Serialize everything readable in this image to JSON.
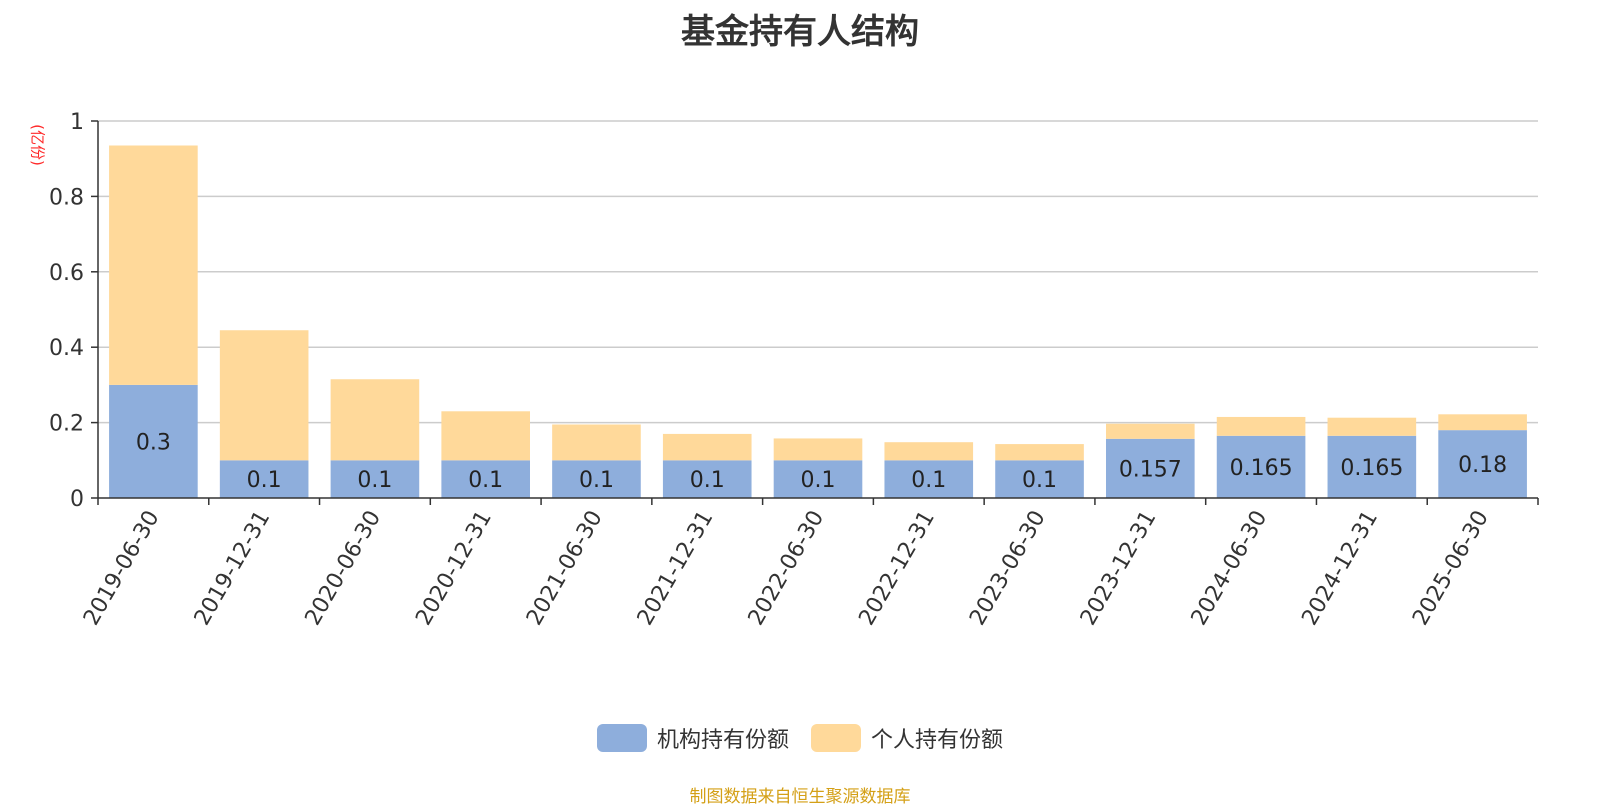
{
  "chart_data": {
    "type": "bar",
    "stacked": true,
    "title": "基金持有人结构",
    "unit_label": "(亿份)",
    "categories": [
      "2019-06-30",
      "2019-12-31",
      "2020-06-30",
      "2020-12-31",
      "2021-06-30",
      "2021-12-31",
      "2022-06-30",
      "2022-12-31",
      "2023-06-30",
      "2023-12-31",
      "2024-06-30",
      "2024-12-31",
      "2025-06-30"
    ],
    "series": [
      {
        "name": "机构持有份额",
        "color": "#8eaedc",
        "values": [
          0.3,
          0.1,
          0.1,
          0.1,
          0.1,
          0.1,
          0.1,
          0.1,
          0.1,
          0.157,
          0.165,
          0.165,
          0.18
        ],
        "labels": [
          "0.3",
          "0.1",
          "0.1",
          "0.1",
          "0.1",
          "0.1",
          "0.1",
          "0.1",
          "0.1",
          "0.157",
          "0.165",
          "0.165",
          "0.18"
        ]
      },
      {
        "name": "个人持有份额",
        "color": "#ffd99a",
        "values": [
          0.635,
          0.345,
          0.215,
          0.13,
          0.095,
          0.07,
          0.058,
          0.048,
          0.043,
          0.04,
          0.05,
          0.048,
          0.042
        ]
      }
    ],
    "ylim": [
      0,
      1
    ],
    "yticks": [
      "0",
      "0.2",
      "0.4",
      "0.6",
      "0.8",
      "1"
    ],
    "grid": true,
    "legend_position": "bottom"
  },
  "footer": {
    "source": "制图数据来自恒生聚源数据库"
  }
}
